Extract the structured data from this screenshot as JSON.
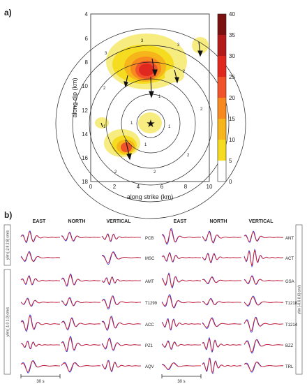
{
  "panel_a": {
    "label": "a)",
    "xlabel": "along strike (km)",
    "ylabel": "along dip (km)",
    "x_ticks": [
      "0",
      "2",
      "4",
      "6",
      "8",
      "10"
    ],
    "y_ticks": [
      "4",
      "6",
      "8",
      "10",
      "12",
      "14",
      "16",
      "18"
    ],
    "colorbar_ticks": [
      "40",
      "35",
      "30",
      "25",
      "20",
      "15",
      "10",
      "5",
      "0"
    ],
    "colorbar_colors": [
      "#7a1010",
      "#b51a1a",
      "#e0281f",
      "#f0522a",
      "#f7891f",
      "#f6b51a",
      "#f5dc20",
      "#f7ec80",
      "#ffffff"
    ],
    "contour_labels": [
      "3",
      "3",
      "3",
      "2",
      "2",
      "2",
      "2",
      "1",
      "1",
      "1",
      "1",
      "1",
      "2",
      "2"
    ]
  },
  "panel_b": {
    "label": "b)",
    "col_headers_left": [
      "EAST",
      "NORTH",
      "VERTICAL"
    ],
    "col_headers_right": [
      "EAST",
      "NORTH",
      "VERTICAL"
    ],
    "stations_left": [
      "PCB",
      "MSC",
      "AMT",
      "T1299",
      "ACC",
      "PZ1",
      "AQV"
    ],
    "stations_right": [
      "ANT",
      "ACT",
      "GSA",
      "T1218",
      "T1214",
      "BZZ",
      "TRL"
    ],
    "ylim_left_top": "ylim [-2.8 2.8] cm/s",
    "ylim_left_bottom": "ylim [-1.0 1.0] cm/s",
    "ylim_right": "ylim [-0.6 0.6] cm/s",
    "scale_label_left": "30 s",
    "scale_label_right": "30 s"
  },
  "colors": {
    "observed": "#e2201c",
    "synthetic": "#1f1fd6"
  }
}
